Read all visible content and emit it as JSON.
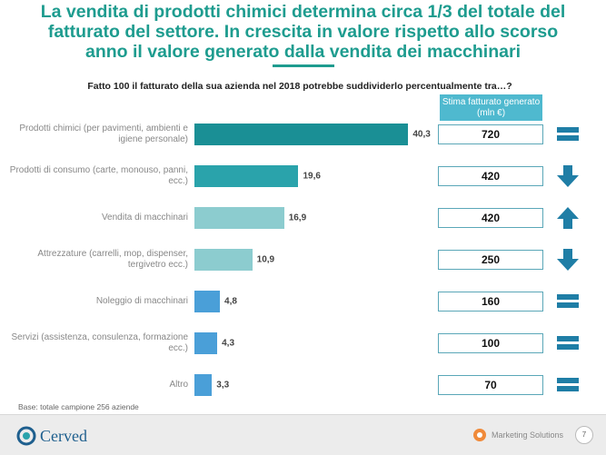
{
  "title": {
    "line1": "La vendita di prodotti chimici determina circa 1/3 del totale del",
    "line2": "fatturato del settore. In crescita in valore rispetto allo scorso",
    "line3": "anno il valore generato dalla vendita dei macchinari"
  },
  "subtitle": "Fatto 100 il fatturato della sua azienda nel 2018 potrebbe suddividerlo percentualmente tra…?",
  "estimate_header": "Stima fatturato generato (mln €)",
  "chart_data": {
    "type": "bar",
    "orientation": "horizontal",
    "categories": [
      "Prodotti chimici (per pavimenti, ambienti e igiene personale)",
      "Prodotti di consumo (carte, monouso, panni, ecc.)",
      "Vendita di macchinari",
      "Attrezzature (carrelli, mop, dispenser, tergivetro ecc.)",
      "Noleggio di macchinari",
      "Servizi (assistenza, consulenza, formazione ecc.)",
      "Altro"
    ],
    "values": [
      40.3,
      19.6,
      16.9,
      10.9,
      4.8,
      4.3,
      3.3
    ],
    "value_labels": [
      "40,3",
      "19,6",
      "16,9",
      "10,9",
      "4,8",
      "4,3",
      "3,3"
    ],
    "bar_colors": [
      "#1a8f95",
      "#2aa3ab",
      "#8ccccf",
      "#8ccccf",
      "#4a9fd8",
      "#4a9fd8",
      "#4a9fd8"
    ],
    "estimates": [
      "720",
      "420",
      "420",
      "250",
      "160",
      "100",
      "70"
    ],
    "trends": [
      "equal",
      "down",
      "up",
      "down",
      "equal",
      "equal",
      "equal"
    ],
    "trend_color": "#1f7ea6"
  },
  "base_note": "Base: totale campione 256 aziende",
  "footer": {
    "logo": "Cerved",
    "partner": "Marketing Solutions",
    "page": "7"
  }
}
